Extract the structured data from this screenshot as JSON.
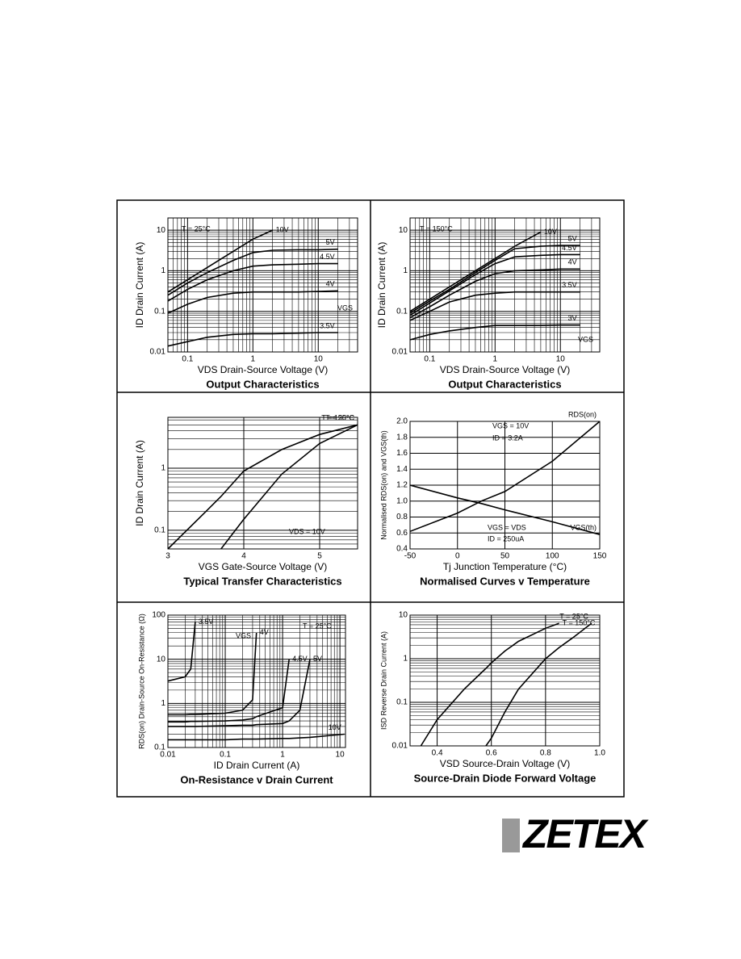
{
  "logo": "ZETEX",
  "chart_data": [
    {
      "type": "line",
      "title": "Output Characteristics",
      "x_label": "VDS  Drain-Source Voltage (V)",
      "y_label": "ID  Drain Current (A)",
      "xscale": "log",
      "yscale": "log",
      "grid": true,
      "xlim": [
        0.05,
        40
      ],
      "ylim": [
        0.01,
        20
      ],
      "xticks": [
        0.1,
        1,
        10
      ],
      "yticks": [
        0.01,
        0.1,
        1,
        10
      ],
      "x": [
        0.05,
        0.1,
        0.2,
        0.5,
        1,
        2,
        5,
        10,
        20
      ],
      "series": [
        {
          "name": "10V",
          "color": "#000000",
          "values": [
            0.3,
            0.6,
            1.2,
            3,
            6,
            10,
            null,
            null,
            null
          ]
        },
        {
          "name": "5V",
          "color": "#000000",
          "values": [
            0.25,
            0.5,
            0.9,
            1.8,
            2.8,
            3.2,
            3.3,
            3.3,
            3.4
          ]
        },
        {
          "name": "4.5V",
          "color": "#000000",
          "values": [
            0.18,
            0.35,
            0.6,
            1.0,
            1.3,
            1.4,
            1.45,
            1.5,
            1.5
          ]
        },
        {
          "name": "4V",
          "color": "#000000",
          "values": [
            0.09,
            0.15,
            0.22,
            0.28,
            0.3,
            0.3,
            0.3,
            0.31,
            0.32
          ]
        },
        {
          "name": "3.5V",
          "color": "#000000",
          "values": [
            0.014,
            0.018,
            0.023,
            0.027,
            0.028,
            0.028,
            0.029,
            0.03,
            0.03
          ]
        }
      ],
      "annotations": [
        "T = 25°C",
        "VGS"
      ]
    },
    {
      "type": "line",
      "title": "Output Characteristics",
      "x_label": "VDS  Drain-Source Voltage (V)",
      "y_label": "ID  Drain Current (A)",
      "xscale": "log",
      "yscale": "log",
      "grid": true,
      "xlim": [
        0.05,
        40
      ],
      "ylim": [
        0.01,
        20
      ],
      "xticks": [
        0.1,
        1,
        10
      ],
      "yticks": [
        0.01,
        0.1,
        1,
        10
      ],
      "x": [
        0.05,
        0.1,
        0.2,
        0.5,
        1,
        2,
        5,
        10,
        20
      ],
      "series": [
        {
          "name": "10V",
          "color": "#000000",
          "values": [
            0.1,
            0.2,
            0.4,
            1.0,
            2,
            4,
            9,
            null,
            null
          ]
        },
        {
          "name": "5V",
          "color": "#000000",
          "values": [
            0.09,
            0.18,
            0.35,
            0.9,
            1.8,
            3.5,
            4.0,
            4.2,
            4.2
          ]
        },
        {
          "name": "4.5V",
          "color": "#000000",
          "values": [
            0.08,
            0.16,
            0.32,
            0.8,
            1.5,
            2.2,
            2.4,
            2.5,
            2.5
          ]
        },
        {
          "name": "4V",
          "color": "#000000",
          "values": [
            0.07,
            0.13,
            0.25,
            0.55,
            0.85,
            1.0,
            1.05,
            1.1,
            1.1
          ]
        },
        {
          "name": "3.5V",
          "color": "#000000",
          "values": [
            0.06,
            0.1,
            0.17,
            0.25,
            0.28,
            0.3,
            0.3,
            0.3,
            0.3
          ]
        },
        {
          "name": "3V",
          "color": "#000000",
          "values": [
            0.02,
            0.027,
            0.033,
            0.04,
            0.045,
            0.045,
            0.045,
            0.046,
            0.046
          ]
        }
      ],
      "annotations": [
        "T = 150°C",
        "VGS"
      ]
    },
    {
      "type": "line",
      "title": "Typical Transfer Characteristics",
      "x_label": "VGS  Gate-Source Voltage (V)",
      "y_label": "ID  Drain Current (A)",
      "xscale": "linear",
      "yscale": "log",
      "grid": true,
      "xlim": [
        3,
        5.5
      ],
      "ylim": [
        0.05,
        6.6
      ],
      "xticks": [
        3,
        4,
        5
      ],
      "yticks": [
        0.1,
        1
      ],
      "x": [
        3.0,
        3.5,
        3.7,
        4,
        4.5,
        5,
        5.5
      ],
      "series": [
        {
          "name": "T = 150°C",
          "color": "#000000",
          "values": [
            0.05,
            0.2,
            0.35,
            0.9,
            2,
            3.5,
            5
          ]
        },
        {
          "name": "T = 25°C",
          "color": "#000000",
          "values": [
            null,
            null,
            0.05,
            0.15,
            0.8,
            2.5,
            5
          ]
        }
      ],
      "annotations": [
        "VDS = 10V"
      ]
    },
    {
      "type": "line",
      "title": "Normalised Curves v Temperature",
      "x_label": "Tj  Junction Temperature (°C)",
      "y_label": "Normalised RDS(on) and VGS(th)",
      "xscale": "linear",
      "yscale": "linear",
      "grid": true,
      "xlim": [
        -50,
        150
      ],
      "ylim": [
        0.4,
        2.0
      ],
      "xticks": [
        -50,
        0,
        50,
        100,
        150
      ],
      "yticks": [
        0.4,
        0.6,
        0.8,
        {
          "value": 1,
          "label": "1.0"
        },
        1.2,
        1.4,
        1.6,
        1.8,
        {
          "value": 2,
          "label": "2.0"
        }
      ],
      "x": [
        -50,
        0,
        25,
        50,
        100,
        150
      ],
      "series": [
        {
          "name": "RDS(on)",
          "color": "#000000",
          "values": [
            0.62,
            0.85,
            1.0,
            1.12,
            1.5,
            2.0
          ]
        },
        {
          "name": "VGS(th)",
          "color": "#000000",
          "values": [
            1.2,
            1.04,
            0.97,
            0.89,
            0.74,
            0.58
          ]
        }
      ],
      "annotations": [
        "VGS = 10V",
        "ID = 3.2A",
        "VGS = VDS",
        "ID = 250uA"
      ]
    },
    {
      "type": "line",
      "title": "On-Resistance v Drain Current",
      "x_label": "ID  Drain Current (A)",
      "y_label": "RDS(on)  Drain-Source On-Resistance (Ω)",
      "xscale": "log",
      "yscale": "log",
      "grid": true,
      "xlim": [
        0.01,
        12.5
      ],
      "ylim": [
        0.1,
        100
      ],
      "xticks": [
        0.01,
        0.1,
        1,
        10
      ],
      "yticks": [
        0.1,
        1,
        10,
        100
      ],
      "x": [
        0.01,
        0.02,
        0.025,
        0.03,
        0.1,
        0.2,
        0.3,
        0.35,
        1,
        1.3,
        2,
        3,
        12
      ],
      "series": [
        {
          "name": "3.5V",
          "color": "#000000",
          "values": [
            3.2,
            4,
            6,
            70,
            null,
            null,
            null,
            null,
            null,
            null,
            null,
            null,
            null
          ]
        },
        {
          "name": "4V",
          "color": "#000000",
          "values": [
            0.55,
            0.55,
            0.56,
            0.56,
            0.6,
            0.7,
            1.2,
            40,
            null,
            null,
            null,
            null,
            null
          ]
        },
        {
          "name": "4.5V",
          "color": "#000000",
          "values": [
            0.38,
            0.38,
            0.39,
            0.39,
            0.4,
            0.42,
            0.45,
            0.5,
            0.8,
            10,
            null,
            null,
            null
          ]
        },
        {
          "name": "5V",
          "color": "#000000",
          "values": [
            0.3,
            0.3,
            0.3,
            0.3,
            0.31,
            0.32,
            0.32,
            0.33,
            0.35,
            0.4,
            0.7,
            10,
            null
          ]
        },
        {
          "name": "10V",
          "color": "#000000",
          "values": [
            0.15,
            0.15,
            0.15,
            0.15,
            0.15,
            0.155,
            0.155,
            0.155,
            0.16,
            0.16,
            0.165,
            0.17,
            0.2
          ]
        }
      ],
      "annotations": [
        "VGS",
        "T = 25°C"
      ]
    },
    {
      "type": "line",
      "title": "Source-Drain Diode Forward Voltage",
      "x_label": "VSD  Source-Drain Voltage (V)",
      "y_label": "ISD  Reverse Drain Current (A)",
      "xscale": "linear",
      "yscale": "log",
      "grid": true,
      "xlim": [
        0.3,
        1.0
      ],
      "ylim": [
        0.01,
        10
      ],
      "xticks": [
        0.4,
        0.6,
        0.8,
        {
          "value": 1,
          "label": "1.0"
        }
      ],
      "yticks": [
        0.01,
        0.1,
        1,
        10
      ],
      "x": [
        0.34,
        0.4,
        0.5,
        0.58,
        0.6,
        0.65,
        0.7,
        0.8,
        0.85,
        0.9,
        0.97
      ],
      "series": [
        {
          "name": "T = 150°C",
          "color": "#000000",
          "values": [
            0.01,
            0.04,
            0.2,
            0.6,
            0.8,
            1.5,
            2.5,
            5,
            6.5,
            null,
            null
          ]
        },
        {
          "name": "T = 25°C",
          "color": "#000000",
          "values": [
            null,
            null,
            null,
            0.01,
            0.015,
            0.06,
            0.2,
            1,
            1.8,
            3,
            6.5
          ]
        }
      ],
      "annotations": []
    }
  ]
}
